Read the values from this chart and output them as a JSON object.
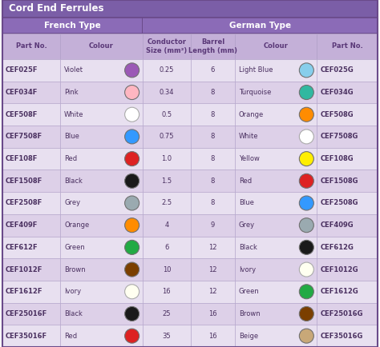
{
  "title": "Cord End Ferrules",
  "title_bg": "#7B5EA7",
  "subheader_bg": "#8B6BB7",
  "col_header_bg": "#C4B0D8",
  "row_bg": "#DDD0E8",
  "row_alt_bg": "#E8E0F0",
  "title_color": "#FFFFFF",
  "subheader_color": "#FFFFFF",
  "col_header_color": "#5A3878",
  "text_color": "#4A3060",
  "border_color": "#B0A0C8",
  "french_label": "French Type",
  "german_label": "German Type",
  "col_headers": [
    "Part No.",
    "Colour",
    "Conductor\nSize (mm²)",
    "Barrel\nLength (mm)",
    "Colour",
    "Part No."
  ],
  "rows": [
    {
      "part_f": "CEF025F",
      "colour_f": "Violet",
      "circle_f": "#9B59B6",
      "conductor": "0.25",
      "barrel": "6",
      "colour_g": "Light Blue",
      "circle_g": "#87CEEB",
      "part_g": "CEF025G"
    },
    {
      "part_f": "CEF034F",
      "colour_f": "Pink",
      "circle_f": "#FFB6C1",
      "conductor": "0.34",
      "barrel": "8",
      "colour_g": "Turquoise",
      "circle_g": "#30B8A0",
      "part_g": "CEF034G"
    },
    {
      "part_f": "CEF508F",
      "colour_f": "White",
      "circle_f": "#FFFFFF",
      "conductor": "0.5",
      "barrel": "8",
      "colour_g": "Orange",
      "circle_g": "#FF8C00",
      "part_g": "CEF508G"
    },
    {
      "part_f": "CEF7508F",
      "colour_f": "Blue",
      "circle_f": "#3399FF",
      "conductor": "0.75",
      "barrel": "8",
      "colour_g": "White",
      "circle_g": "#FFFFFF",
      "part_g": "CEF7508G"
    },
    {
      "part_f": "CEF108F",
      "colour_f": "Red",
      "circle_f": "#DD2222",
      "conductor": "1.0",
      "barrel": "8",
      "colour_g": "Yellow",
      "circle_g": "#FFEE00",
      "part_g": "CEF108G"
    },
    {
      "part_f": "CEF1508F",
      "colour_f": "Black",
      "circle_f": "#1A1A1A",
      "conductor": "1.5",
      "barrel": "8",
      "colour_g": "Red",
      "circle_g": "#DD2222",
      "part_g": "CEF1508G"
    },
    {
      "part_f": "CEF2508F",
      "colour_f": "Grey",
      "circle_f": "#9AAAB0",
      "conductor": "2.5",
      "barrel": "8",
      "colour_g": "Blue",
      "circle_g": "#3399FF",
      "part_g": "CEF2508G"
    },
    {
      "part_f": "CEF409F",
      "colour_f": "Orange",
      "circle_f": "#FF8C00",
      "conductor": "4",
      "barrel": "9",
      "colour_g": "Grey",
      "circle_g": "#9AAAB0",
      "part_g": "CEF409G"
    },
    {
      "part_f": "CEF612F",
      "colour_f": "Green",
      "circle_f": "#22AA44",
      "conductor": "6",
      "barrel": "12",
      "colour_g": "Black",
      "circle_g": "#1A1A1A",
      "part_g": "CEF612G"
    },
    {
      "part_f": "CEF1012F",
      "colour_f": "Brown",
      "circle_f": "#7B3F00",
      "conductor": "10",
      "barrel": "12",
      "colour_g": "Ivory",
      "circle_g": "#FFFFF0",
      "part_g": "CEF1012G"
    },
    {
      "part_f": "CEF1612F",
      "colour_f": "Ivory",
      "circle_f": "#FFFFF0",
      "conductor": "16",
      "barrel": "12",
      "colour_g": "Green",
      "circle_g": "#22AA44",
      "part_g": "CEF1612G"
    },
    {
      "part_f": "CEF25016F",
      "colour_f": "Black",
      "circle_f": "#1A1A1A",
      "conductor": "25",
      "barrel": "16",
      "colour_g": "Brown",
      "circle_g": "#7B3F00",
      "part_g": "CEF25016G"
    },
    {
      "part_f": "CEF35016F",
      "colour_f": "Red",
      "circle_f": "#DD2222",
      "conductor": "35",
      "barrel": "16",
      "colour_g": "Beige",
      "circle_g": "#C8A878",
      "part_g": "CEF35016G"
    }
  ]
}
